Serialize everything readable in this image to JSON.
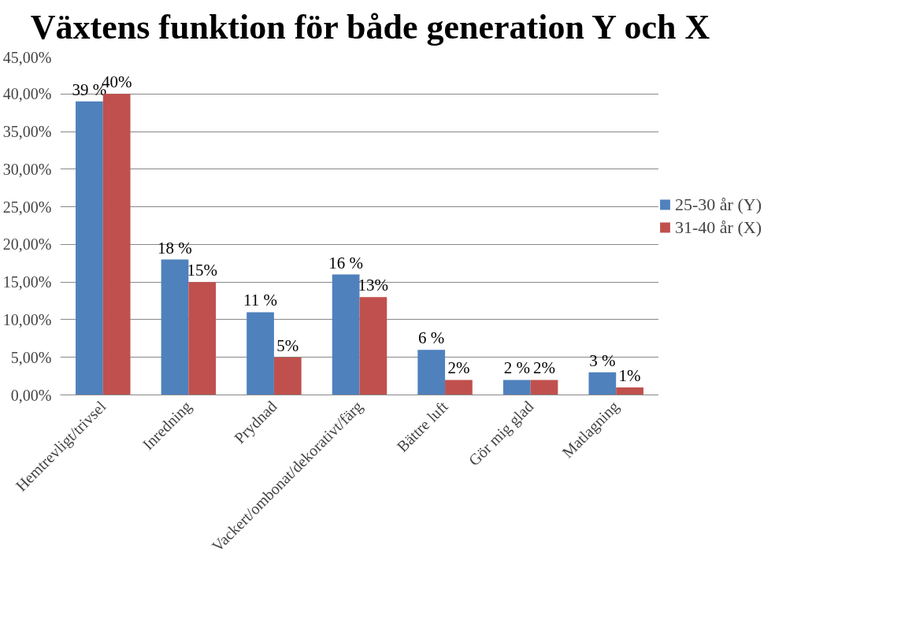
{
  "chart_data": {
    "type": "bar",
    "title": "Växtens funktion för både generation Y och X",
    "categories": [
      "Hemtrevligt/trivsel",
      "Inredning",
      "Prydnad",
      "Vackert/ombonat/dekorativt/färg",
      "Bättre luft",
      "Gör mig glad",
      "Matlagning"
    ],
    "series": [
      {
        "name": "25-30 år (Y)",
        "color": "#4f81bd",
        "values": [
          39,
          18,
          11,
          16,
          6,
          2,
          3
        ],
        "value_labels": [
          "39 %",
          "18 %",
          "11 %",
          "16 %",
          "6 %",
          "2 %",
          "3 %"
        ]
      },
      {
        "name": "31-40 år (X)",
        "color": "#c0504d",
        "values": [
          40,
          15,
          5,
          13,
          2,
          2,
          1
        ],
        "value_labels": [
          "40%",
          "15%",
          "5%",
          "13%",
          "2%",
          "2%",
          "1%"
        ]
      }
    ],
    "ylim": [
      0,
      45
    ],
    "yticks": [
      {
        "value": 0,
        "label": "0,00%"
      },
      {
        "value": 5,
        "label": "5,00%"
      },
      {
        "value": 10,
        "label": "10,00%"
      },
      {
        "value": 15,
        "label": "15,00%"
      },
      {
        "value": 20,
        "label": "20,00%"
      },
      {
        "value": 25,
        "label": "25,00%"
      },
      {
        "value": 30,
        "label": "30,00%"
      },
      {
        "value": 35,
        "label": "35,00%"
      },
      {
        "value": 40,
        "label": "40,00%"
      },
      {
        "value": 45,
        "label": "45,00%"
      }
    ],
    "grid": "y",
    "legend": "right"
  }
}
